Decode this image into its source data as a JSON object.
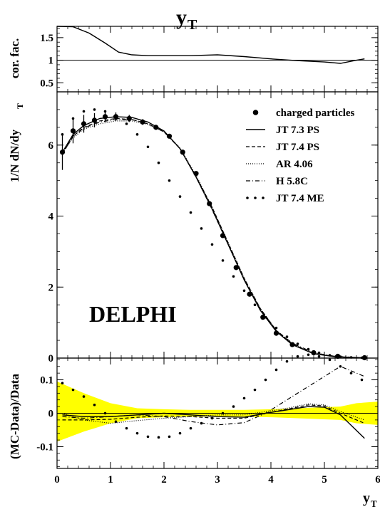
{
  "chart_data": [
    {
      "panel": "correction",
      "type": "line",
      "title": "y",
      "title_sub": "T",
      "ylabel": "cor. fac.",
      "ylim": [
        0.3,
        1.75
      ],
      "yticks": [
        0.5,
        1,
        1.5
      ],
      "yticklabels": [
        "0.5",
        "1",
        "1.5"
      ],
      "reference_line": 1,
      "series": [
        {
          "x": [
            0.0,
            0.3,
            0.6,
            0.9,
            1.15,
            1.4,
            1.7,
            2.0,
            2.5,
            3.0,
            3.5,
            4.0,
            4.5,
            5.0,
            5.3,
            5.6,
            5.75
          ],
          "values": [
            1.75,
            1.74,
            1.6,
            1.38,
            1.18,
            1.12,
            1.1,
            1.1,
            1.1,
            1.12,
            1.08,
            1.03,
            0.99,
            0.96,
            0.93,
            1.0,
            1.03
          ]
        }
      ]
    },
    {
      "panel": "distribution",
      "type": "line",
      "ylabel_parts": [
        "1/N dN/dy",
        "T"
      ],
      "ylim": [
        0,
        7.5
      ],
      "yticks": [
        0,
        2,
        4,
        6
      ],
      "yticklabels": [
        "0",
        "2",
        "4",
        "6"
      ],
      "watermark": "DELPHI",
      "legend": [
        {
          "label": "charged particles",
          "style": "marker"
        },
        {
          "label": "JT 7.3 PS",
          "style": "solid"
        },
        {
          "label": "JT 7.4 PS",
          "style": "dashed"
        },
        {
          "label": "AR 4.06",
          "style": "dotted"
        },
        {
          "label": "H 5.8C",
          "style": "dashdot"
        },
        {
          "label": "JT 7.4 ME",
          "style": "bigdots"
        }
      ],
      "data_points": {
        "x": [
          0.1,
          0.3,
          0.5,
          0.7,
          0.9,
          1.1,
          1.35,
          1.6,
          1.85,
          2.1,
          2.35,
          2.6,
          2.85,
          3.1,
          3.35,
          3.6,
          3.85,
          4.1,
          4.4,
          4.8,
          5.25,
          5.75
        ],
        "y": [
          5.8,
          6.4,
          6.6,
          6.7,
          6.8,
          6.8,
          6.75,
          6.65,
          6.5,
          6.25,
          5.8,
          5.2,
          4.35,
          3.45,
          2.55,
          1.8,
          1.15,
          0.7,
          0.38,
          0.15,
          0.05,
          0.01
        ],
        "err": [
          0.5,
          0.35,
          0.25,
          0.2,
          0.15,
          0.12,
          0.1,
          0.08,
          0.07,
          0.06,
          0.06,
          0.06,
          0.05,
          0.05,
          0.05,
          0.05,
          0.04,
          0.03,
          0.02,
          0.02,
          0.01,
          0.01
        ]
      },
      "series": [
        {
          "name": "JT 7.3 PS",
          "style": "solid",
          "x": [
            0.1,
            0.3,
            0.5,
            0.8,
            1.1,
            1.4,
            1.7,
            2.0,
            2.3,
            2.6,
            2.9,
            3.2,
            3.5,
            3.8,
            4.1,
            4.4,
            4.8,
            5.2,
            5.75
          ],
          "values": [
            5.8,
            6.3,
            6.55,
            6.75,
            6.8,
            6.78,
            6.65,
            6.4,
            5.9,
            5.1,
            4.2,
            3.2,
            2.2,
            1.35,
            0.75,
            0.38,
            0.12,
            0.04,
            0.005
          ]
        },
        {
          "name": "JT 7.4 PS",
          "style": "dashed",
          "x": [
            0.1,
            0.3,
            0.5,
            0.8,
            1.1,
            1.4,
            1.7,
            2.0,
            2.3,
            2.6,
            2.9,
            3.2,
            3.5,
            3.8,
            4.1,
            4.4,
            4.8,
            5.2,
            5.75
          ],
          "values": [
            5.75,
            6.25,
            6.5,
            6.68,
            6.75,
            6.72,
            6.6,
            6.37,
            5.9,
            5.12,
            4.25,
            3.25,
            2.25,
            1.4,
            0.78,
            0.4,
            0.13,
            0.04,
            0.005
          ]
        },
        {
          "name": "AR 4.06",
          "style": "dotted",
          "x": [
            0.1,
            0.3,
            0.5,
            0.8,
            1.1,
            1.4,
            1.7,
            2.0,
            2.3,
            2.6,
            2.9,
            3.2,
            3.5,
            3.8,
            4.1,
            4.4,
            4.8,
            5.2,
            5.75
          ],
          "values": [
            5.8,
            6.2,
            6.45,
            6.6,
            6.68,
            6.68,
            6.58,
            6.38,
            5.92,
            5.15,
            4.25,
            3.25,
            2.25,
            1.4,
            0.78,
            0.4,
            0.13,
            0.04,
            0.005
          ]
        },
        {
          "name": "H 5.8C",
          "style": "dashdot",
          "x": [
            0.1,
            0.3,
            0.5,
            0.8,
            1.1,
            1.4,
            1.7,
            2.0,
            2.3,
            2.6,
            2.9,
            3.2,
            3.5,
            3.8,
            4.1,
            4.4,
            4.8,
            5.2,
            5.75
          ],
          "values": [
            5.75,
            6.25,
            6.48,
            6.65,
            6.72,
            6.72,
            6.6,
            6.38,
            5.9,
            5.1,
            4.18,
            3.2,
            2.22,
            1.38,
            0.78,
            0.42,
            0.15,
            0.05,
            0.005
          ]
        },
        {
          "name": "JT 7.4 ME",
          "style": "bigdots",
          "x": [
            0.1,
            0.3,
            0.5,
            0.7,
            0.9,
            1.1,
            1.3,
            1.5,
            1.7,
            1.9,
            2.1,
            2.3,
            2.5,
            2.7,
            2.9,
            3.1,
            3.3,
            3.5,
            3.7,
            3.9,
            4.1,
            4.3,
            4.5,
            4.7,
            4.9,
            5.1,
            5.3,
            5.5,
            5.7
          ],
          "values": [
            6.3,
            6.75,
            6.95,
            7.0,
            6.95,
            6.8,
            6.6,
            6.3,
            5.95,
            5.5,
            5.0,
            4.55,
            4.1,
            3.65,
            3.2,
            2.75,
            2.3,
            1.9,
            1.5,
            1.15,
            0.85,
            0.6,
            0.4,
            0.25,
            0.15,
            0.08,
            0.04,
            0.02,
            0.01
          ]
        }
      ]
    },
    {
      "panel": "ratio",
      "type": "line",
      "ylabel": "(MC-Data)/Data",
      "xlabel": "y",
      "xlabel_sub": "T",
      "xlim": [
        0,
        6
      ],
      "xticks": [
        0,
        1,
        2,
        3,
        4,
        5,
        6
      ],
      "xticklabels": [
        "0",
        "1",
        "2",
        "3",
        "4",
        "5",
        "6"
      ],
      "ylim": [
        -0.165,
        0.165
      ],
      "yticks": [
        -0.1,
        0,
        0.1
      ],
      "yticklabels": [
        "-0.1",
        "0",
        "0.1"
      ],
      "band_color": "#ffff00",
      "band": {
        "x": [
          0.0,
          0.5,
          1.0,
          1.5,
          2.0,
          2.5,
          3.0,
          3.5,
          4.0,
          4.5,
          5.0,
          5.3,
          5.6,
          6.0
        ],
        "upper": [
          0.095,
          0.06,
          0.03,
          0.015,
          0.012,
          0.01,
          0.01,
          0.01,
          0.012,
          0.015,
          0.018,
          0.02,
          0.03,
          0.035
        ],
        "lower": [
          -0.085,
          -0.055,
          -0.03,
          -0.015,
          -0.012,
          -0.01,
          -0.01,
          -0.01,
          -0.012,
          -0.015,
          -0.018,
          -0.02,
          -0.03,
          -0.035
        ]
      },
      "series": [
        {
          "name": "JT 7.3 PS",
          "style": "solid",
          "x": [
            0.1,
            0.5,
            1.0,
            1.5,
            2.0,
            2.5,
            3.0,
            3.5,
            3.9,
            4.3,
            4.7,
            5.0,
            5.3,
            5.75
          ],
          "values": [
            -0.005,
            -0.01,
            -0.01,
            -0.005,
            0.0,
            -0.005,
            -0.01,
            -0.012,
            0.0,
            0.01,
            0.02,
            0.018,
            -0.005,
            -0.075
          ]
        },
        {
          "name": "JT 7.4 PS",
          "style": "dashed",
          "x": [
            0.1,
            0.5,
            1.0,
            1.5,
            2.0,
            2.5,
            3.0,
            3.5,
            3.9,
            4.3,
            4.7,
            5.0,
            5.3,
            5.75
          ],
          "values": [
            -0.02,
            -0.02,
            -0.018,
            -0.012,
            -0.008,
            -0.01,
            -0.015,
            -0.015,
            0.0,
            0.012,
            0.025,
            0.022,
            0.0,
            -0.03
          ]
        },
        {
          "name": "AR 4.06",
          "style": "dotted",
          "x": [
            0.1,
            0.5,
            1.0,
            1.5,
            2.0,
            2.5,
            3.0,
            3.5,
            3.9,
            4.3,
            4.7,
            5.0,
            5.3,
            5.75
          ],
          "values": [
            0.0,
            -0.02,
            -0.03,
            -0.022,
            -0.015,
            -0.01,
            -0.005,
            -0.005,
            0.005,
            0.015,
            0.028,
            0.025,
            0.005,
            -0.02
          ]
        },
        {
          "name": "H 5.8C",
          "style": "dashdot",
          "x": [
            0.1,
            0.5,
            1.0,
            1.5,
            2.0,
            2.5,
            3.0,
            3.5,
            3.9,
            4.3,
            4.7,
            5.0,
            5.3,
            5.75
          ],
          "values": [
            -0.01,
            -0.015,
            -0.01,
            -0.005,
            -0.01,
            -0.025,
            -0.035,
            -0.028,
            0.0,
            0.04,
            0.08,
            0.11,
            0.14,
            0.11
          ]
        },
        {
          "name": "JT 7.4 ME",
          "style": "bigdots",
          "x": [
            0.1,
            0.3,
            0.5,
            0.7,
            0.9,
            1.1,
            1.3,
            1.5,
            1.7,
            1.9,
            2.1,
            2.3,
            2.5,
            2.7,
            2.9,
            3.1,
            3.3,
            3.5,
            3.7,
            3.9,
            4.1,
            4.3,
            4.5,
            4.7,
            4.9,
            5.1,
            5.3,
            5.5,
            5.7
          ],
          "values": [
            0.09,
            0.07,
            0.05,
            0.025,
            0.0,
            -0.025,
            -0.045,
            -0.06,
            -0.07,
            -0.072,
            -0.07,
            -0.06,
            -0.045,
            -0.03,
            -0.015,
            0.0,
            0.02,
            0.045,
            0.07,
            0.1,
            0.13,
            0.155,
            0.17,
            0.175,
            0.17,
            0.16,
            0.14,
            0.12,
            0.1
          ]
        }
      ]
    }
  ]
}
